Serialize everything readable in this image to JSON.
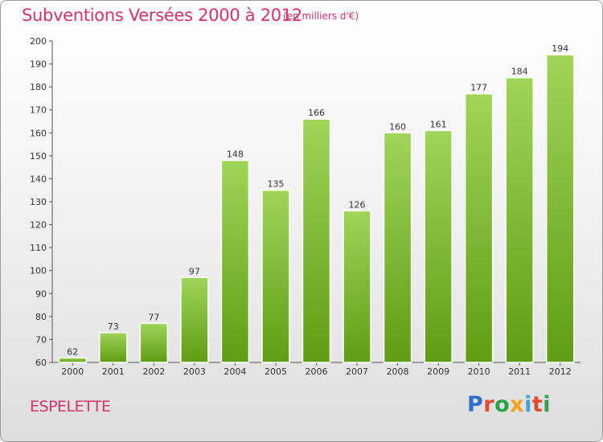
{
  "header": {
    "title": "Subventions Versées 2000 à 2012",
    "subtitle": "(en milliers d'€)"
  },
  "footer": {
    "city": "ESPELETTE",
    "brand": "Proxiti",
    "brand_colors": [
      "#2e6fcf",
      "#e8482c",
      "#2ea24a",
      "#f3a316",
      "#3aa8df",
      "#e8482c",
      "#2ea24a"
    ]
  },
  "chart_data": {
    "type": "bar",
    "title": "Subventions Versées 2000 à 2012",
    "subtitle": "(en milliers d'€)",
    "categories": [
      "2000",
      "2001",
      "2002",
      "2003",
      "2004",
      "2005",
      "2006",
      "2007",
      "2008",
      "2009",
      "2010",
      "2011",
      "2012"
    ],
    "values": [
      62,
      73,
      77,
      97,
      148,
      135,
      166,
      126,
      160,
      161,
      177,
      184,
      194
    ],
    "ylim": [
      60,
      200
    ],
    "yticks": [
      60,
      70,
      80,
      90,
      100,
      110,
      120,
      130,
      140,
      150,
      160,
      170,
      180,
      190,
      200
    ],
    "grid": false,
    "data_labels": true,
    "bar_color_top": "#9fd55a",
    "bar_color_bottom": "#5f9d12"
  }
}
